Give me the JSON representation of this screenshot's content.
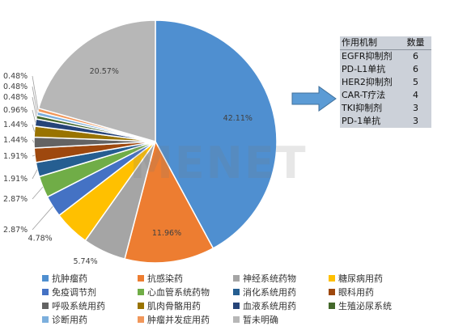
{
  "chart_data": {
    "type": "pie",
    "categories": [
      "抗肿瘤药",
      "抗感染药",
      "神经系统药物",
      "糖尿病用药",
      "免疫调节剂",
      "心血管系统药物",
      "消化系统用药",
      "眼科用药",
      "呼吸系统用药",
      "肌肉骨骼用药",
      "血液系统用药",
      "生殖泌尿系统",
      "诊断用药",
      "肿瘤并发症用药",
      "暂未明确"
    ],
    "values": [
      42.11,
      11.96,
      5.74,
      4.78,
      2.87,
      2.87,
      1.91,
      1.91,
      1.44,
      1.44,
      0.96,
      0.48,
      0.48,
      0.48,
      20.57
    ],
    "labels": [
      "42.11%",
      "11.96%",
      "5.74%",
      "4.78%",
      "2.87%",
      "2.87%",
      "1.91%",
      "1.91%",
      "1.44%",
      "1.44%",
      "0.96%",
      "0.48%",
      "0.48%",
      "0.48%",
      "20.57%"
    ],
    "colors": [
      "#4f8fd0",
      "#ed7d31",
      "#a5a5a5",
      "#ffc000",
      "#4472c4",
      "#70ad47",
      "#255e91",
      "#9e480e",
      "#636363",
      "#997300",
      "#264478",
      "#43682b",
      "#7cafdd",
      "#f1975a",
      "#b7b7b7"
    ],
    "start_angle_deg": 0,
    "direction": "clockwise",
    "legend_position": "bottom"
  },
  "watermark": "MENET",
  "table": {
    "headers": [
      "作用机制",
      "数量"
    ],
    "rows": [
      [
        "EGFR抑制剂",
        "6"
      ],
      [
        "PD-L1单抗",
        "6"
      ],
      [
        "HER2抑制剂",
        "5"
      ],
      [
        "CAR-T疗法",
        "4"
      ],
      [
        "TKI抑制剂",
        "3"
      ],
      [
        "PD-1单抗",
        "3"
      ]
    ]
  },
  "arrow_color": "#5b9bd5"
}
